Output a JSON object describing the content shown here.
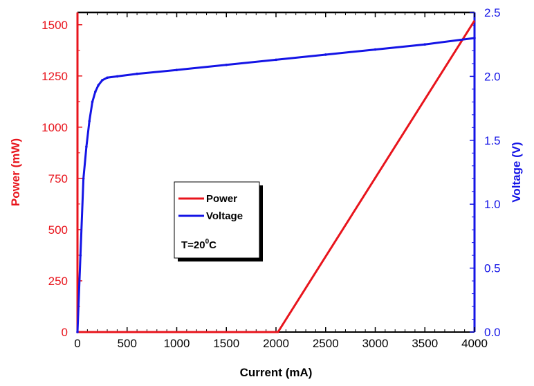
{
  "chart_data": {
    "type": "line",
    "xlabel": "Current (mA)",
    "ylabel_left": "Power (mW)",
    "ylabel_right": "Voltage (V)",
    "xlim": [
      0,
      4000
    ],
    "ylim_left": [
      0,
      1560
    ],
    "ylim_right": [
      0,
      2.5
    ],
    "x_ticks": [
      0,
      500,
      1000,
      1500,
      2000,
      2500,
      3000,
      3500,
      4000
    ],
    "y_left_ticks": [
      0,
      250,
      500,
      750,
      1000,
      1250,
      1500
    ],
    "y_right_ticks": [
      "0.0",
      "0.5",
      "1.0",
      "1.5",
      "2.0",
      "2.5"
    ],
    "annotation": {
      "prefix": "T=20",
      "superscript": "0",
      "suffix": "C"
    },
    "series": [
      {
        "name": "Power",
        "axis": "left",
        "color": "#e8141c",
        "points": [
          [
            0,
            1560
          ],
          [
            0,
            0
          ],
          [
            2020,
            0
          ],
          [
            4000,
            1520
          ]
        ]
      },
      {
        "name": "Voltage",
        "axis": "right",
        "color": "#1414e6",
        "points": [
          [
            0,
            0
          ],
          [
            30,
            0.6
          ],
          [
            60,
            1.2
          ],
          [
            90,
            1.45
          ],
          [
            120,
            1.65
          ],
          [
            150,
            1.8
          ],
          [
            180,
            1.88
          ],
          [
            210,
            1.93
          ],
          [
            250,
            1.97
          ],
          [
            300,
            1.99
          ],
          [
            400,
            2.0
          ],
          [
            600,
            2.02
          ],
          [
            1000,
            2.05
          ],
          [
            1500,
            2.09
          ],
          [
            2000,
            2.13
          ],
          [
            2500,
            2.17
          ],
          [
            3000,
            2.21
          ],
          [
            3500,
            2.25
          ],
          [
            4000,
            2.3
          ]
        ]
      }
    ],
    "legend": {
      "placement": "center-left",
      "entries": [
        "Power",
        "Voltage"
      ]
    }
  }
}
